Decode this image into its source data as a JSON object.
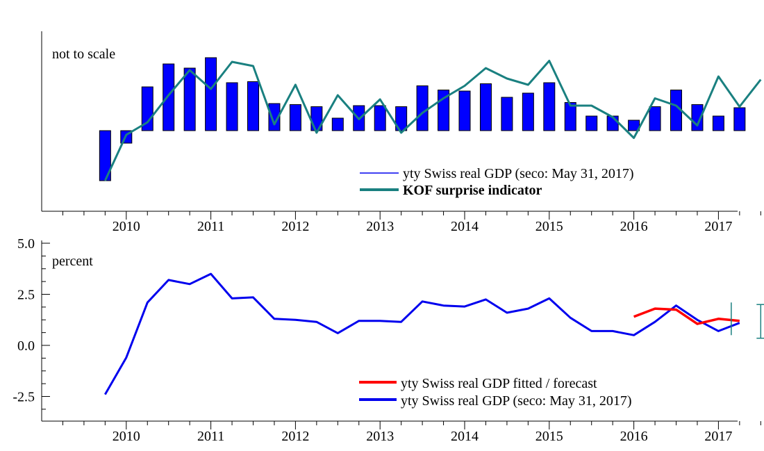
{
  "colors": {
    "bar": "#0000ff",
    "kof": "#1a8080",
    "gdp_line": "#0000ee",
    "fitted": "#ff0000",
    "error_bar": "#1a8080"
  },
  "chart_data": [
    {
      "type": "bar",
      "annotation": "not to scale",
      "x_tick_labels": [
        "2010",
        "2011",
        "2012",
        "2013",
        "2014",
        "2015",
        "2016",
        "2017"
      ],
      "x_start": "2009Q3",
      "xlim": [
        "2009Q1",
        "2017Q3"
      ],
      "series": [
        {
          "name": "yty Swiss real GDP (seco: May 31, 2017)",
          "type": "bar",
          "values": [
            -2.4,
            -0.6,
            2.1,
            3.2,
            3.0,
            3.5,
            2.3,
            2.35,
            1.3,
            1.25,
            1.15,
            0.6,
            1.2,
            1.2,
            1.15,
            2.15,
            1.95,
            1.9,
            2.25,
            1.6,
            1.8,
            2.3,
            1.35,
            0.7,
            0.7,
            0.5,
            1.15,
            1.95,
            1.25,
            0.7,
            1.1
          ]
        },
        {
          "name": "KOF surprise indicator",
          "type": "line",
          "values": [
            -2.4,
            -0.2,
            0.4,
            1.7,
            2.9,
            2.0,
            3.3,
            3.1,
            0.3,
            2.2,
            -0.1,
            1.7,
            0.55,
            1.5,
            -0.1,
            0.85,
            1.55,
            2.15,
            3.0,
            2.5,
            2.2,
            3.35,
            1.2,
            1.2,
            0.65,
            -0.35,
            1.55,
            1.2,
            0.25,
            2.6,
            1.15,
            2.45
          ]
        }
      ]
    },
    {
      "type": "line",
      "ylabel": "percent",
      "ylim": [
        -3.5,
        5.0
      ],
      "y_tick_labels": [
        "5.0",
        "2.5",
        "0.0",
        "-2.5"
      ],
      "x_tick_labels": [
        "2010",
        "2011",
        "2012",
        "2013",
        "2014",
        "2015",
        "2016",
        "2017"
      ],
      "x_start": "2009Q3",
      "xlim": [
        "2009Q1",
        "2017Q3"
      ],
      "series": [
        {
          "name": "yty Swiss real GDP fitted / forecast",
          "x_start": "2016Q1",
          "values": [
            1.4,
            1.8,
            1.75,
            1.05,
            1.3,
            1.2
          ]
        },
        {
          "name": "yty Swiss real GDP (seco: May 31, 2017)",
          "x_start": "2009Q3",
          "values": [
            -2.4,
            -0.6,
            2.1,
            3.2,
            3.0,
            3.5,
            2.3,
            2.35,
            1.3,
            1.25,
            1.15,
            0.6,
            1.2,
            1.2,
            1.15,
            2.15,
            1.95,
            1.9,
            2.25,
            1.6,
            1.8,
            2.3,
            1.35,
            0.7,
            0.7,
            0.5,
            1.15,
            1.95,
            1.25,
            0.7,
            1.1
          ]
        }
      ],
      "error_bars": [
        {
          "x": "2017Q2",
          "center": 1.3,
          "low": 0.5,
          "high": 2.1
        },
        {
          "x": "2017Q3",
          "center": 1.2,
          "low": 0.35,
          "high": 2.0
        }
      ]
    }
  ]
}
